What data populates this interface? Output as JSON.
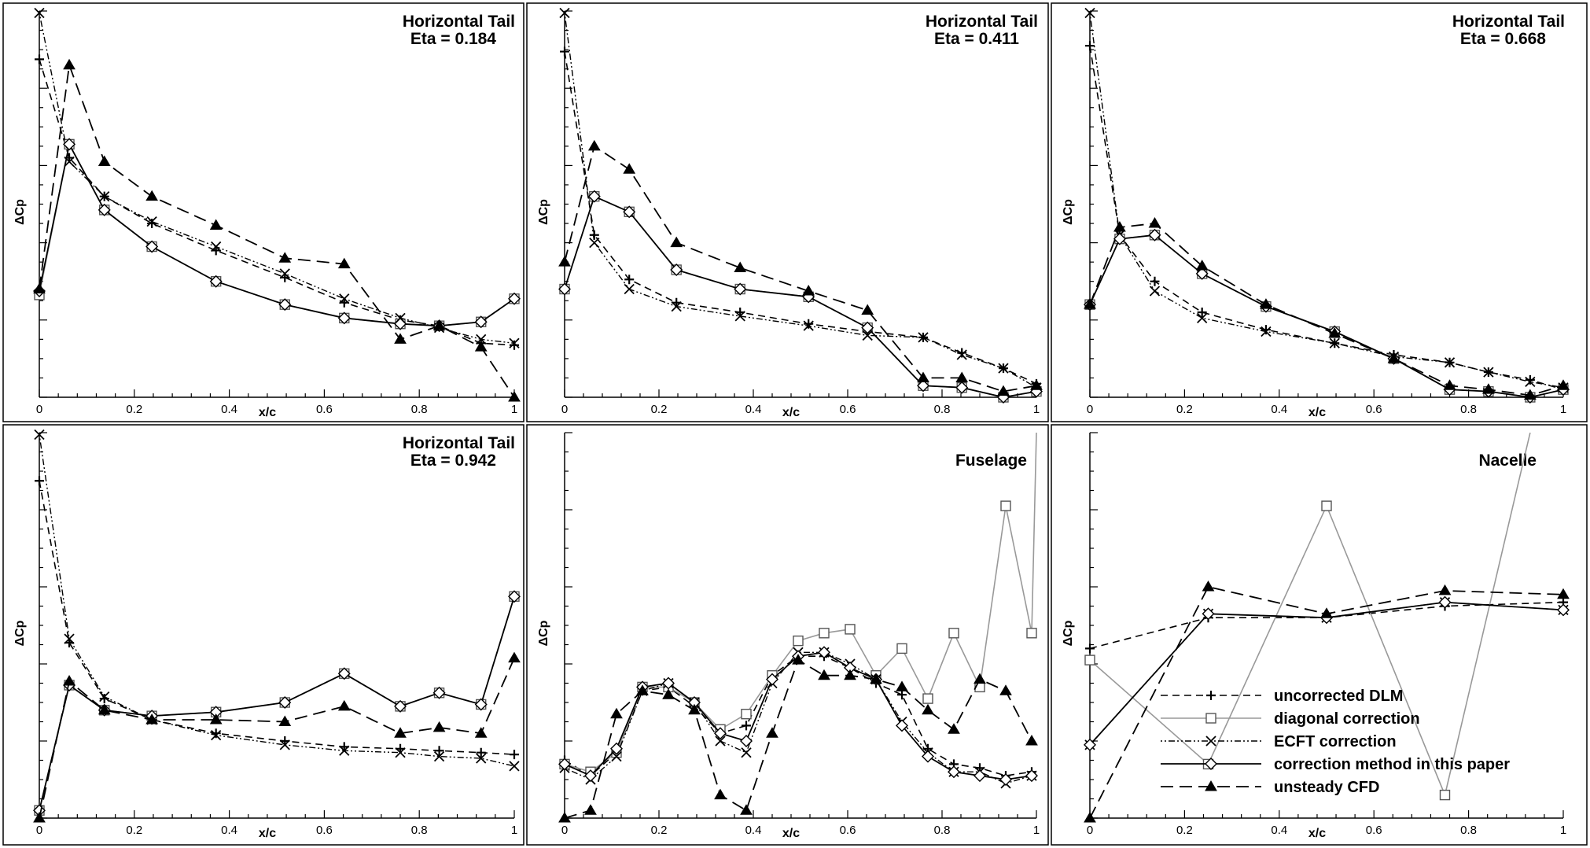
{
  "chart_data": [
    {
      "type": "line",
      "title": "Horizontal Tail",
      "subtitle": "Eta = 0.184",
      "xlabel": "x/c",
      "ylabel": "ΔCp",
      "xlim": [
        0,
        1
      ],
      "ylim": [
        0,
        1
      ],
      "xticks": [
        "0",
        "0.2",
        "0.4",
        "0.6",
        "0.8",
        "1"
      ],
      "series": [
        {
          "name": "uncorrected DLM",
          "x": [
            0,
            0.063,
            0.137,
            0.237,
            0.372,
            0.517,
            0.642,
            0.76,
            0.842,
            0.93,
            1.0
          ],
          "y": [
            0.875,
            0.62,
            0.52,
            0.45,
            0.38,
            0.31,
            0.245,
            0.2,
            0.185,
            0.14,
            0.135
          ]
        },
        {
          "name": "diagonal correction",
          "x": [
            0,
            0.063,
            0.137,
            0.237,
            0.372,
            0.517,
            0.642,
            0.76,
            0.842,
            0.93,
            1.0
          ],
          "y": [
            0.265,
            0.655,
            0.485,
            0.39,
            0.3,
            0.24,
            0.205,
            0.19,
            0.185,
            0.195,
            0.255
          ]
        },
        {
          "name": "ECFT correction",
          "x": [
            0,
            0.063,
            0.137,
            0.237,
            0.372,
            0.517,
            0.642,
            0.76,
            0.842,
            0.93,
            1.0
          ],
          "y": [
            0.995,
            0.61,
            0.52,
            0.455,
            0.39,
            0.32,
            0.255,
            0.205,
            0.18,
            0.15,
            0.14
          ]
        },
        {
          "name": "correction method in this paper",
          "x": [
            0,
            0.063,
            0.137,
            0.237,
            0.372,
            0.517,
            0.642,
            0.76,
            0.842,
            0.93,
            1.0
          ],
          "y": [
            0.275,
            0.655,
            0.485,
            0.39,
            0.3,
            0.24,
            0.205,
            0.19,
            0.185,
            0.195,
            0.255
          ]
        },
        {
          "name": "unsteady CFD",
          "x": [
            0,
            0.063,
            0.137,
            0.237,
            0.372,
            0.517,
            0.642,
            0.76,
            0.842,
            0.93,
            1.0
          ],
          "y": [
            0.28,
            0.86,
            0.61,
            0.52,
            0.445,
            0.36,
            0.345,
            0.15,
            0.185,
            0.13,
            0.0
          ]
        }
      ]
    },
    {
      "type": "line",
      "title": "Horizontal Tail",
      "subtitle": "Eta = 0.411",
      "xlabel": "x/c",
      "ylabel": "ΔCp",
      "xlim": [
        0,
        1
      ],
      "ylim": [
        0,
        1
      ],
      "xticks": [
        "0",
        "0.2",
        "0.4",
        "0.6",
        "0.8",
        "1"
      ],
      "series": [
        {
          "name": "uncorrected DLM",
          "x": [
            0,
            0.063,
            0.137,
            0.237,
            0.372,
            0.517,
            0.642,
            0.76,
            0.842,
            0.93,
            1.0
          ],
          "y": [
            0.895,
            0.42,
            0.305,
            0.245,
            0.22,
            0.19,
            0.17,
            0.155,
            0.115,
            0.075,
            0.035
          ]
        },
        {
          "name": "diagonal correction",
          "x": [
            0,
            0.063,
            0.137,
            0.237,
            0.372,
            0.517,
            0.642,
            0.76,
            0.842,
            0.93,
            1.0
          ],
          "y": [
            0.28,
            0.52,
            0.48,
            0.33,
            0.28,
            0.26,
            0.18,
            0.03,
            0.025,
            0.0,
            0.015
          ]
        },
        {
          "name": "ECFT correction",
          "x": [
            0,
            0.063,
            0.137,
            0.237,
            0.372,
            0.517,
            0.642,
            0.76,
            0.842,
            0.93,
            1.0
          ],
          "y": [
            0.995,
            0.4,
            0.28,
            0.235,
            0.21,
            0.185,
            0.16,
            0.155,
            0.11,
            0.075,
            0.025
          ]
        },
        {
          "name": "correction method in this paper",
          "x": [
            0,
            0.063,
            0.137,
            0.237,
            0.372,
            0.517,
            0.642,
            0.76,
            0.842,
            0.93,
            1.0
          ],
          "y": [
            0.28,
            0.52,
            0.48,
            0.33,
            0.28,
            0.26,
            0.18,
            0.03,
            0.025,
            0.0,
            0.015
          ]
        },
        {
          "name": "unsteady CFD",
          "x": [
            0,
            0.063,
            0.137,
            0.237,
            0.372,
            0.517,
            0.642,
            0.76,
            0.842,
            0.93,
            1.0
          ],
          "y": [
            0.35,
            0.65,
            0.59,
            0.4,
            0.335,
            0.275,
            0.225,
            0.05,
            0.05,
            0.015,
            0.03
          ]
        }
      ]
    },
    {
      "type": "line",
      "title": "Horizontal Tail",
      "subtitle": "Eta = 0.668",
      "xlabel": "x/c",
      "ylabel": "ΔCp",
      "xlim": [
        0,
        1
      ],
      "ylim": [
        0,
        1
      ],
      "xticks": [
        "0",
        "0.2",
        "0.4",
        "0.6",
        "0.8",
        "1"
      ],
      "series": [
        {
          "name": "uncorrected DLM",
          "x": [
            0,
            0.063,
            0.137,
            0.237,
            0.372,
            0.517,
            0.642,
            0.76,
            0.842,
            0.93,
            1.0
          ],
          "y": [
            0.91,
            0.42,
            0.3,
            0.22,
            0.175,
            0.14,
            0.11,
            0.09,
            0.065,
            0.045,
            0.02
          ]
        },
        {
          "name": "diagonal correction",
          "x": [
            0,
            0.063,
            0.137,
            0.237,
            0.372,
            0.517,
            0.642,
            0.76,
            0.842,
            0.93,
            1.0
          ],
          "y": [
            0.24,
            0.41,
            0.42,
            0.32,
            0.235,
            0.17,
            0.1,
            0.02,
            0.015,
            0.0,
            0.02
          ]
        },
        {
          "name": "ECFT correction",
          "x": [
            0,
            0.063,
            0.137,
            0.237,
            0.372,
            0.517,
            0.642,
            0.76,
            0.842,
            0.93,
            1.0
          ],
          "y": [
            0.995,
            0.42,
            0.275,
            0.205,
            0.17,
            0.14,
            0.105,
            0.09,
            0.065,
            0.04,
            0.025
          ]
        },
        {
          "name": "correction method in this paper",
          "x": [
            0,
            0.063,
            0.137,
            0.237,
            0.372,
            0.517,
            0.642,
            0.76,
            0.842,
            0.93,
            1.0
          ],
          "y": [
            0.24,
            0.41,
            0.42,
            0.32,
            0.235,
            0.17,
            0.1,
            0.02,
            0.015,
            0.0,
            0.02
          ]
        },
        {
          "name": "unsteady CFD",
          "x": [
            0,
            0.063,
            0.137,
            0.237,
            0.372,
            0.517,
            0.642,
            0.76,
            0.842,
            0.93,
            1.0
          ],
          "y": [
            0.24,
            0.44,
            0.45,
            0.34,
            0.24,
            0.165,
            0.1,
            0.03,
            0.02,
            0.005,
            0.03
          ]
        }
      ]
    },
    {
      "type": "line",
      "title": "Horizontal Tail",
      "subtitle": "Eta = 0.942",
      "xlabel": "x/c",
      "ylabel": "ΔCp",
      "xlim": [
        0,
        1
      ],
      "ylim": [
        0,
        1
      ],
      "xticks": [
        "0",
        "0.2",
        "0.4",
        "0.6",
        "0.8",
        "1"
      ],
      "series": [
        {
          "name": "uncorrected DLM",
          "x": [
            0,
            0.063,
            0.137,
            0.237,
            0.372,
            0.517,
            0.642,
            0.76,
            0.842,
            0.93,
            1.0
          ],
          "y": [
            0.875,
            0.455,
            0.31,
            0.255,
            0.22,
            0.2,
            0.185,
            0.18,
            0.175,
            0.17,
            0.165
          ]
        },
        {
          "name": "diagonal correction",
          "x": [
            0,
            0.063,
            0.137,
            0.237,
            0.372,
            0.517,
            0.642,
            0.76,
            0.842,
            0.93,
            1.0
          ],
          "y": [
            0.02,
            0.345,
            0.28,
            0.265,
            0.275,
            0.3,
            0.375,
            0.29,
            0.325,
            0.295,
            0.575
          ]
        },
        {
          "name": "ECFT correction",
          "x": [
            0,
            0.063,
            0.137,
            0.237,
            0.372,
            0.517,
            0.642,
            0.76,
            0.842,
            0.93,
            1.0
          ],
          "y": [
            0.995,
            0.465,
            0.315,
            0.255,
            0.215,
            0.19,
            0.175,
            0.17,
            0.16,
            0.155,
            0.135
          ]
        },
        {
          "name": "correction method in this paper",
          "x": [
            0,
            0.063,
            0.137,
            0.237,
            0.372,
            0.517,
            0.642,
            0.76,
            0.842,
            0.93,
            1.0
          ],
          "y": [
            0.02,
            0.345,
            0.28,
            0.265,
            0.275,
            0.3,
            0.375,
            0.29,
            0.325,
            0.295,
            0.575
          ]
        },
        {
          "name": "unsteady CFD",
          "x": [
            0,
            0.063,
            0.137,
            0.237,
            0.372,
            0.517,
            0.642,
            0.76,
            0.842,
            0.93,
            1.0
          ],
          "y": [
            0.0,
            0.355,
            0.28,
            0.255,
            0.255,
            0.25,
            0.29,
            0.22,
            0.235,
            0.22,
            0.415
          ]
        }
      ]
    },
    {
      "type": "line",
      "title": "Fuselage",
      "xlabel": "x/c",
      "ylabel": "ΔCp",
      "xlim": [
        0,
        1
      ],
      "ylim": [
        0,
        1
      ],
      "xticks": [
        "0",
        "0.2",
        "0.4",
        "0.6",
        "0.8",
        "1"
      ],
      "series": [
        {
          "name": "uncorrected DLM",
          "x": [
            0,
            0.055,
            0.11,
            0.165,
            0.22,
            0.275,
            0.33,
            0.385,
            0.44,
            0.495,
            0.55,
            0.605,
            0.66,
            0.715,
            0.77,
            0.825,
            0.88,
            0.935,
            0.99
          ],
          "y": [
            0.15,
            0.11,
            0.17,
            0.33,
            0.34,
            0.29,
            0.22,
            0.24,
            0.37,
            0.42,
            0.42,
            0.39,
            0.35,
            0.32,
            0.18,
            0.14,
            0.13,
            0.11,
            0.12
          ]
        },
        {
          "name": "diagonal correction",
          "x": [
            0,
            0.055,
            0.11,
            0.165,
            0.22,
            0.275,
            0.33,
            0.385,
            0.44,
            0.495,
            0.55,
            0.605,
            0.66,
            0.715,
            0.77,
            0.825,
            0.88,
            0.935,
            0.99,
            1.0
          ],
          "y": [
            0.14,
            0.12,
            0.17,
            0.34,
            0.34,
            0.3,
            0.23,
            0.27,
            0.37,
            0.46,
            0.48,
            0.49,
            0.37,
            0.44,
            0.31,
            0.48,
            0.34,
            0.81,
            0.48,
            1.0
          ]
        },
        {
          "name": "ECFT correction",
          "x": [
            0,
            0.055,
            0.11,
            0.165,
            0.22,
            0.275,
            0.33,
            0.385,
            0.44,
            0.495,
            0.55,
            0.605,
            0.66,
            0.715,
            0.77,
            0.825,
            0.88,
            0.935,
            0.99
          ],
          "y": [
            0.13,
            0.1,
            0.16,
            0.33,
            0.35,
            0.3,
            0.2,
            0.17,
            0.35,
            0.43,
            0.43,
            0.4,
            0.36,
            0.25,
            0.17,
            0.12,
            0.12,
            0.09,
            0.11
          ]
        },
        {
          "name": "correction method in this paper",
          "x": [
            0,
            0.055,
            0.11,
            0.165,
            0.22,
            0.275,
            0.33,
            0.385,
            0.44,
            0.495,
            0.55,
            0.605,
            0.66,
            0.715,
            0.77,
            0.825,
            0.88,
            0.935,
            0.99
          ],
          "y": [
            0.14,
            0.11,
            0.18,
            0.34,
            0.35,
            0.3,
            0.22,
            0.2,
            0.36,
            0.42,
            0.43,
            0.39,
            0.36,
            0.24,
            0.16,
            0.12,
            0.11,
            0.1,
            0.11
          ]
        },
        {
          "name": "unsteady CFD",
          "x": [
            0,
            0.055,
            0.11,
            0.165,
            0.22,
            0.275,
            0.33,
            0.385,
            0.44,
            0.495,
            0.55,
            0.605,
            0.66,
            0.715,
            0.77,
            0.825,
            0.88,
            0.935,
            0.99
          ],
          "y": [
            0.0,
            0.02,
            0.27,
            0.33,
            0.32,
            0.28,
            0.06,
            0.02,
            0.22,
            0.41,
            0.37,
            0.37,
            0.36,
            0.34,
            0.28,
            0.23,
            0.36,
            0.33,
            0.2
          ]
        }
      ]
    },
    {
      "type": "line",
      "title": "Nacelle",
      "xlabel": "x/c",
      "ylabel": "ΔCp",
      "xlim": [
        0,
        1
      ],
      "ylim": [
        0,
        1
      ],
      "xticks": [
        "0",
        "0.2",
        "0.4",
        "0.6",
        "0.8",
        "1"
      ],
      "series": [
        {
          "name": "uncorrected DLM",
          "x": [
            0,
            0.25,
            0.5,
            0.75,
            1.0
          ],
          "y": [
            0.44,
            0.52,
            0.52,
            0.55,
            0.56
          ]
        },
        {
          "name": "diagonal correction",
          "x": [
            0,
            0.25,
            0.5,
            0.75,
            0.93
          ],
          "y": [
            0.41,
            0.14,
            0.81,
            0.06,
            1.0
          ]
        },
        {
          "name": "ECFT correction",
          "x": [
            0,
            0.25,
            0.5,
            0.75,
            1.0
          ],
          "y": [
            0.19,
            0.53,
            0.52,
            0.56,
            0.54
          ]
        },
        {
          "name": "correction method in this paper",
          "x": [
            0,
            0.25,
            0.5,
            0.75,
            1.0
          ],
          "y": [
            0.19,
            0.53,
            0.52,
            0.56,
            0.54
          ]
        },
        {
          "name": "unsteady CFD",
          "x": [
            0,
            0.25,
            0.5,
            0.75,
            1.0
          ],
          "y": [
            0.0,
            0.6,
            0.53,
            0.59,
            0.58
          ]
        }
      ]
    }
  ],
  "legend": {
    "placement": "bottom-right of the Nacelle panel",
    "entries": [
      "uncorrected DLM",
      "diagonal correction",
      "ECFT correction",
      "correction method in this paper",
      "unsteady CFD"
    ]
  }
}
